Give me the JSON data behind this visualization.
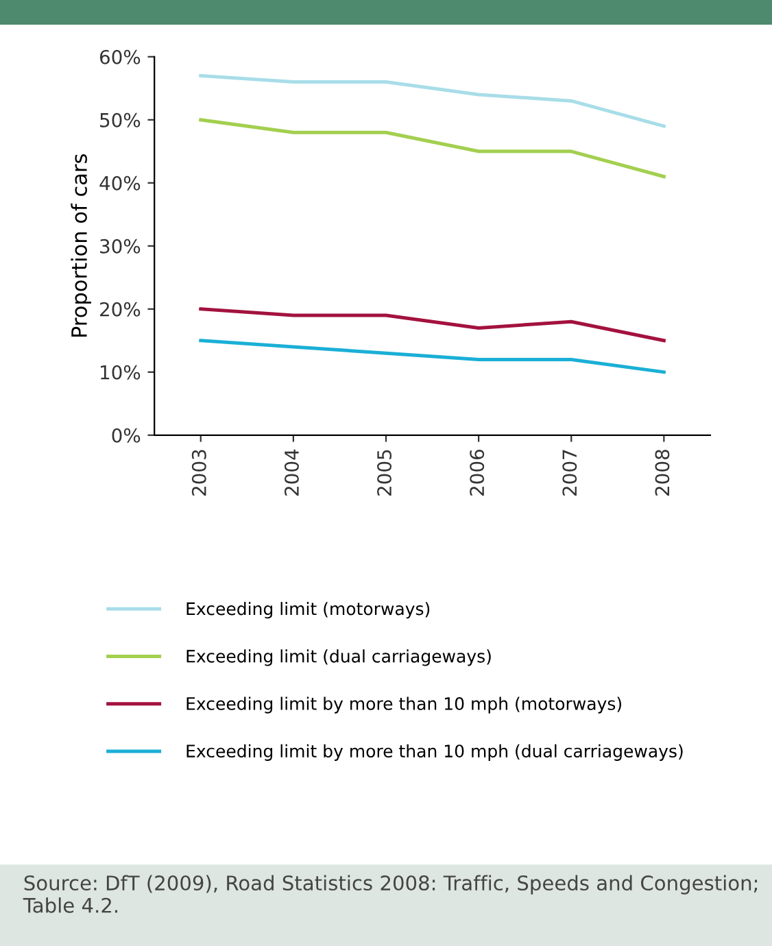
{
  "chart_data": {
    "type": "line",
    "ylabel": "Proportion of cars",
    "categories": [
      "2003",
      "2004",
      "2005",
      "2006",
      "2007",
      "2008"
    ],
    "series": [
      {
        "name": "Exceeding limit (motorways)",
        "color": "#a8dde8",
        "values": [
          57,
          56,
          56,
          54,
          53,
          49
        ]
      },
      {
        "name": "Exceeding limit (dual carriageways)",
        "color": "#a3cf4f",
        "values": [
          50,
          48,
          48,
          45,
          45,
          41
        ]
      },
      {
        "name": "Exceeding limit by more than 10 mph (motorways)",
        "color": "#a3123e",
        "values": [
          20,
          19,
          19,
          17,
          18,
          15
        ]
      },
      {
        "name": "Exceeding limit by more than 10 mph (dual carriageways)",
        "color": "#1aafd6",
        "values": [
          15,
          14,
          13,
          12,
          12,
          10
        ]
      }
    ],
    "ylim": [
      0,
      60
    ],
    "yticks": [
      {
        "value": 0,
        "label": "0%"
      },
      {
        "value": 10,
        "label": "10%"
      },
      {
        "value": 20,
        "label": "20%"
      },
      {
        "value": 30,
        "label": "30%"
      },
      {
        "value": 40,
        "label": "40%"
      },
      {
        "value": 50,
        "label": "50%"
      },
      {
        "value": 60,
        "label": "60%"
      }
    ],
    "grid": false,
    "legend": "bottom",
    "marker": "none",
    "line_style": "solid",
    "annotations": [
      "Source: DfT (2009), Road Statistics 2008: Traffic, Speeds and Congestion; Table 4.2."
    ]
  }
}
